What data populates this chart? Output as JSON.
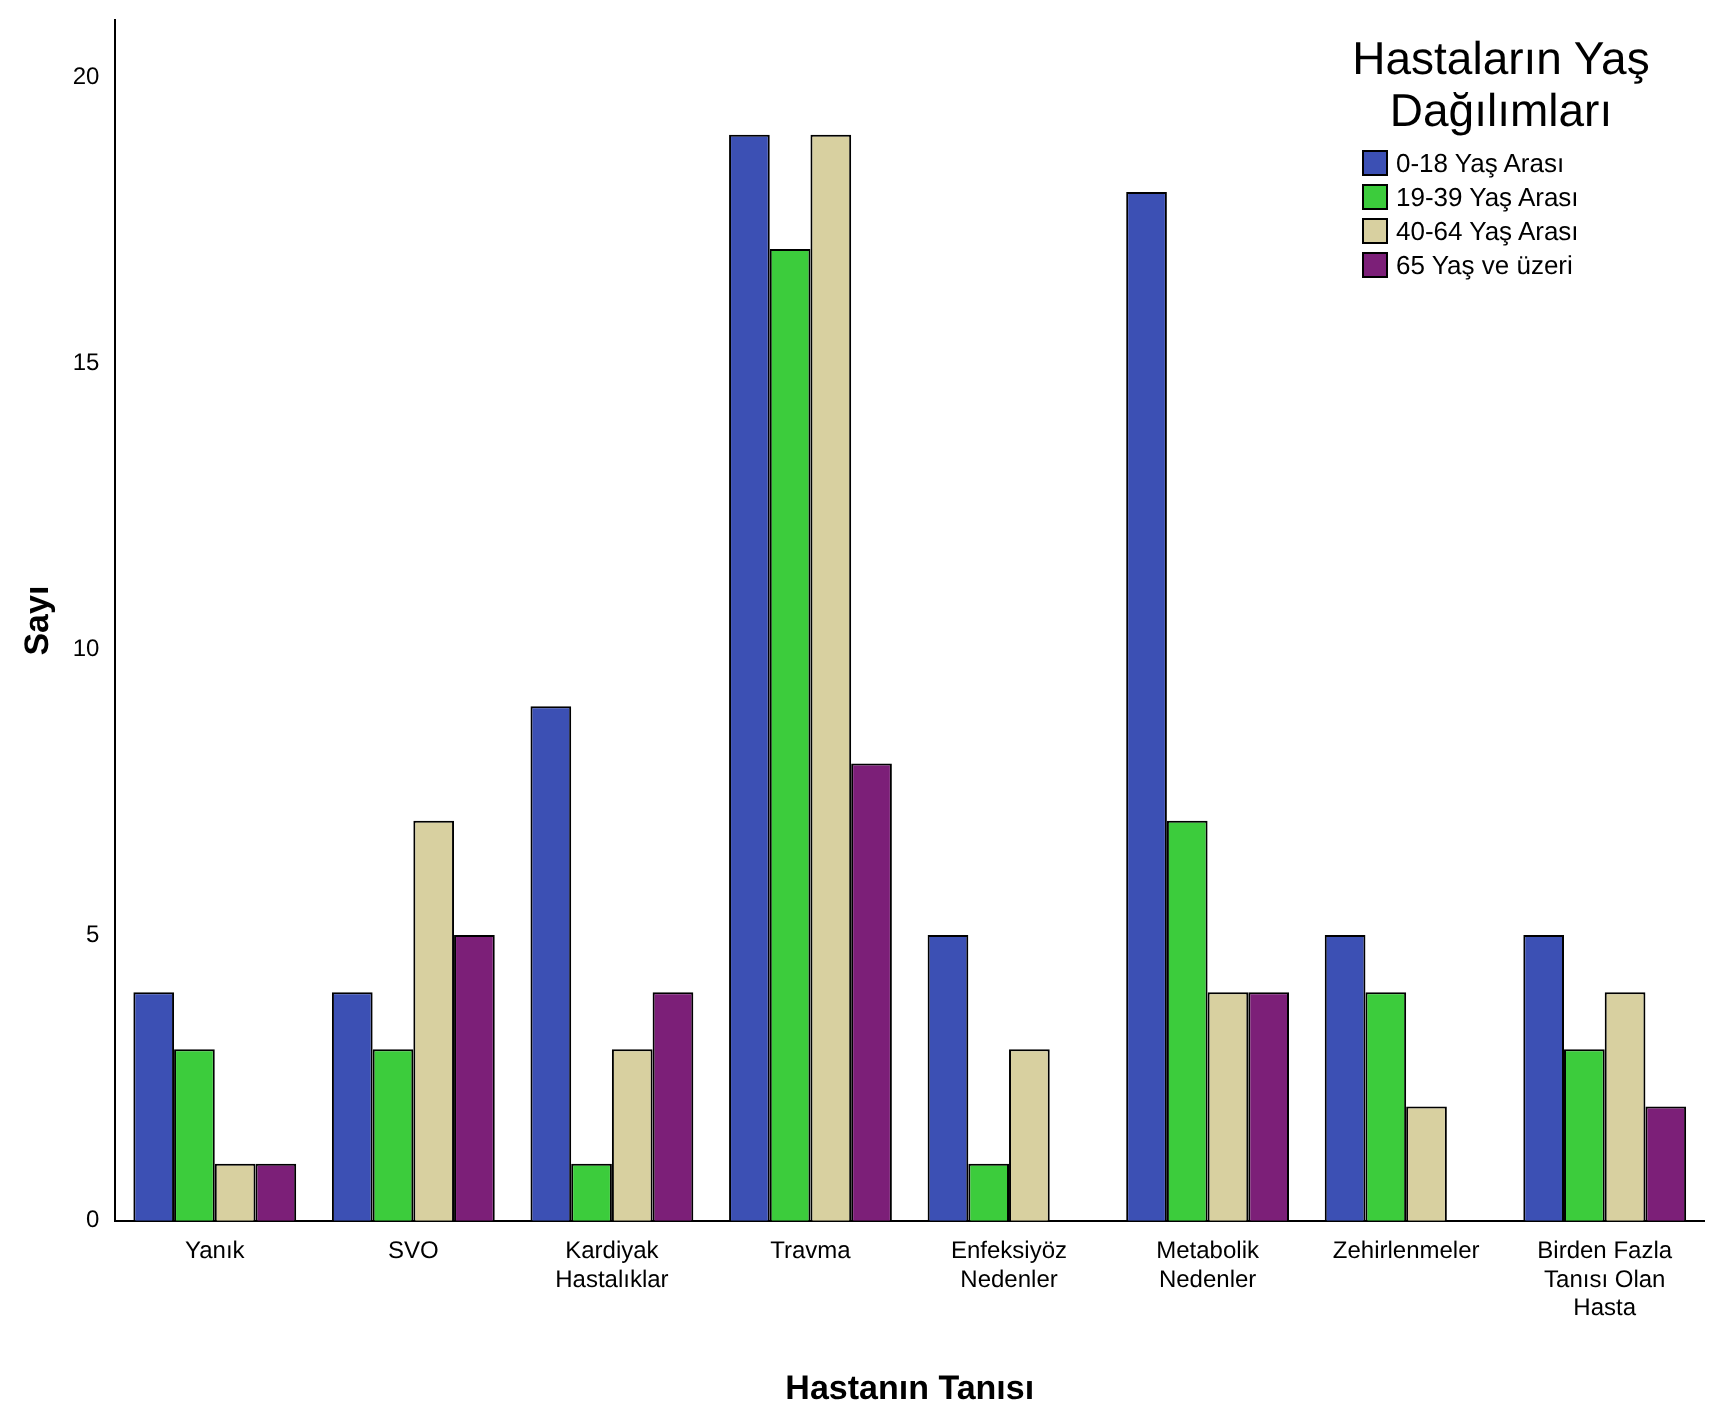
{
  "chart_data": {
    "type": "bar",
    "xlabel": "Hastanın Tanısı",
    "ylabel": "Sayı",
    "legend_title": "Hastaların Yaş Dağılımları",
    "legend": "top right",
    "grid": false,
    "categories": [
      "Yanık",
      "SVO",
      "Kardiyak Hastalıklar",
      "Travma",
      "Enfeksiyöz Nedenler",
      "Metabolik Nedenler",
      "Zehirlenmeler",
      "Birden Fazla Tanısı Olan Hasta"
    ],
    "ylim": [
      0,
      21
    ],
    "yticks": [
      0,
      5,
      10,
      15,
      20
    ],
    "series": [
      {
        "name": "0-18 Yaş Arası",
        "color": "#3c50b4",
        "values": [
          4,
          4,
          9,
          19,
          5,
          18,
          5,
          5
        ]
      },
      {
        "name": "19-39 Yaş Arası",
        "color": "#3ccc3c",
        "values": [
          3,
          3,
          1,
          17,
          1,
          7,
          4,
          3
        ]
      },
      {
        "name": "40-64 Yaş Arası",
        "color": "#d8d0a0",
        "values": [
          1,
          7,
          3,
          19,
          3,
          4,
          2,
          4
        ]
      },
      {
        "name": "65 Yaş ve üzeri",
        "color": "#7c1f78",
        "values": [
          1,
          5,
          4,
          8,
          0,
          4,
          0,
          2
        ]
      }
    ]
  }
}
